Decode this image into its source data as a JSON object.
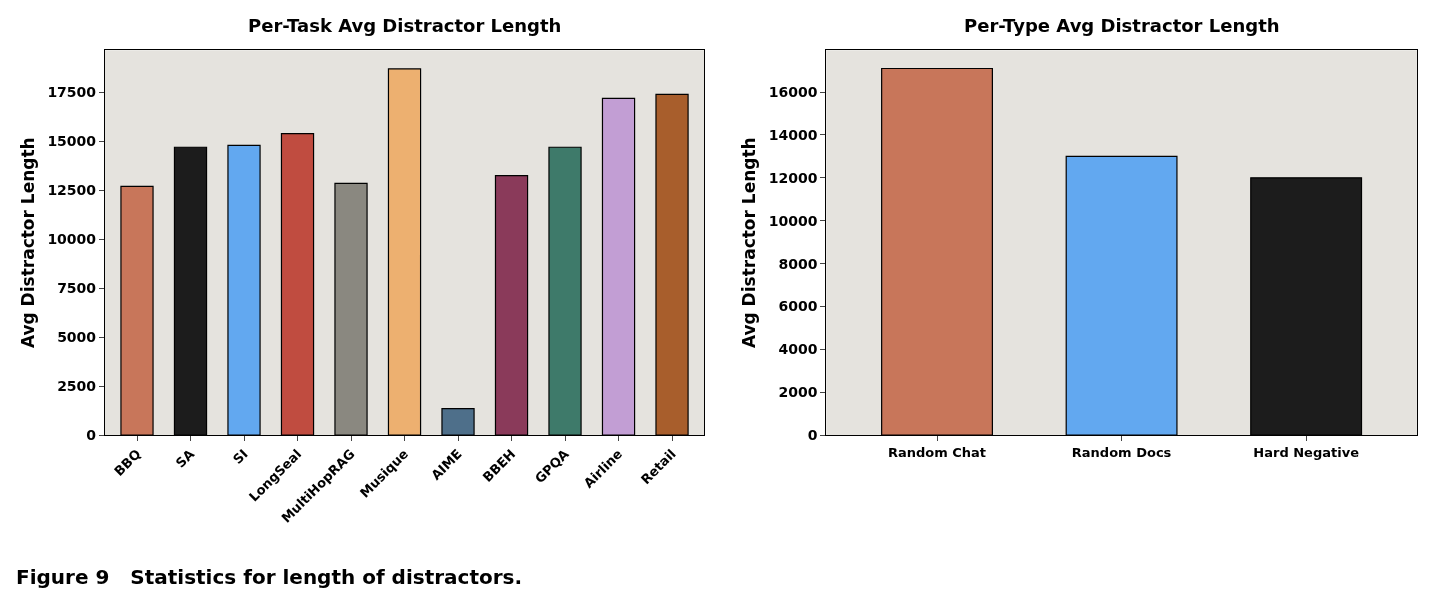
{
  "chart_data": [
    {
      "type": "bar",
      "title": "Per-Task Avg Distractor Length",
      "ylabel": "Avg Distractor Length",
      "categories": [
        "BBQ",
        "SA",
        "SI",
        "LongSeal",
        "MultiHopRAG",
        "Musique",
        "AIME",
        "BBEH",
        "GPQA",
        "Airline",
        "Retail"
      ],
      "values": [
        12700,
        14700,
        14800,
        15400,
        12850,
        18700,
        1350,
        13250,
        14700,
        17200,
        17400
      ],
      "colors": [
        "#c8765a",
        "#1c1c1c",
        "#62a8f0",
        "#c04c40",
        "#8a8880",
        "#edb070",
        "#4e6f8a",
        "#8a3a5a",
        "#3e7a6a",
        "#c29ed4",
        "#a85e2c"
      ],
      "ylim": [
        0,
        19650
      ],
      "yticks": [
        0,
        2500,
        5000,
        7500,
        10000,
        12500,
        15000,
        17500
      ],
      "grid": false,
      "legend": false,
      "annotations": [
        "Figure 9   Statistics for length of distractors."
      ]
    },
    {
      "type": "bar",
      "title": "Per-Type Avg Distractor Length",
      "ylabel": "Avg Distractor Length",
      "categories": [
        "Random Chat",
        "Random Docs",
        "Hard Negative"
      ],
      "values": [
        17100,
        13000,
        12000
      ],
      "colors": [
        "#c8765a",
        "#62a8f0",
        "#1c1c1c"
      ],
      "ylim": [
        0,
        17950
      ],
      "yticks": [
        0,
        2000,
        4000,
        6000,
        8000,
        10000,
        12000,
        14000,
        16000
      ],
      "grid": false,
      "legend": false
    }
  ]
}
